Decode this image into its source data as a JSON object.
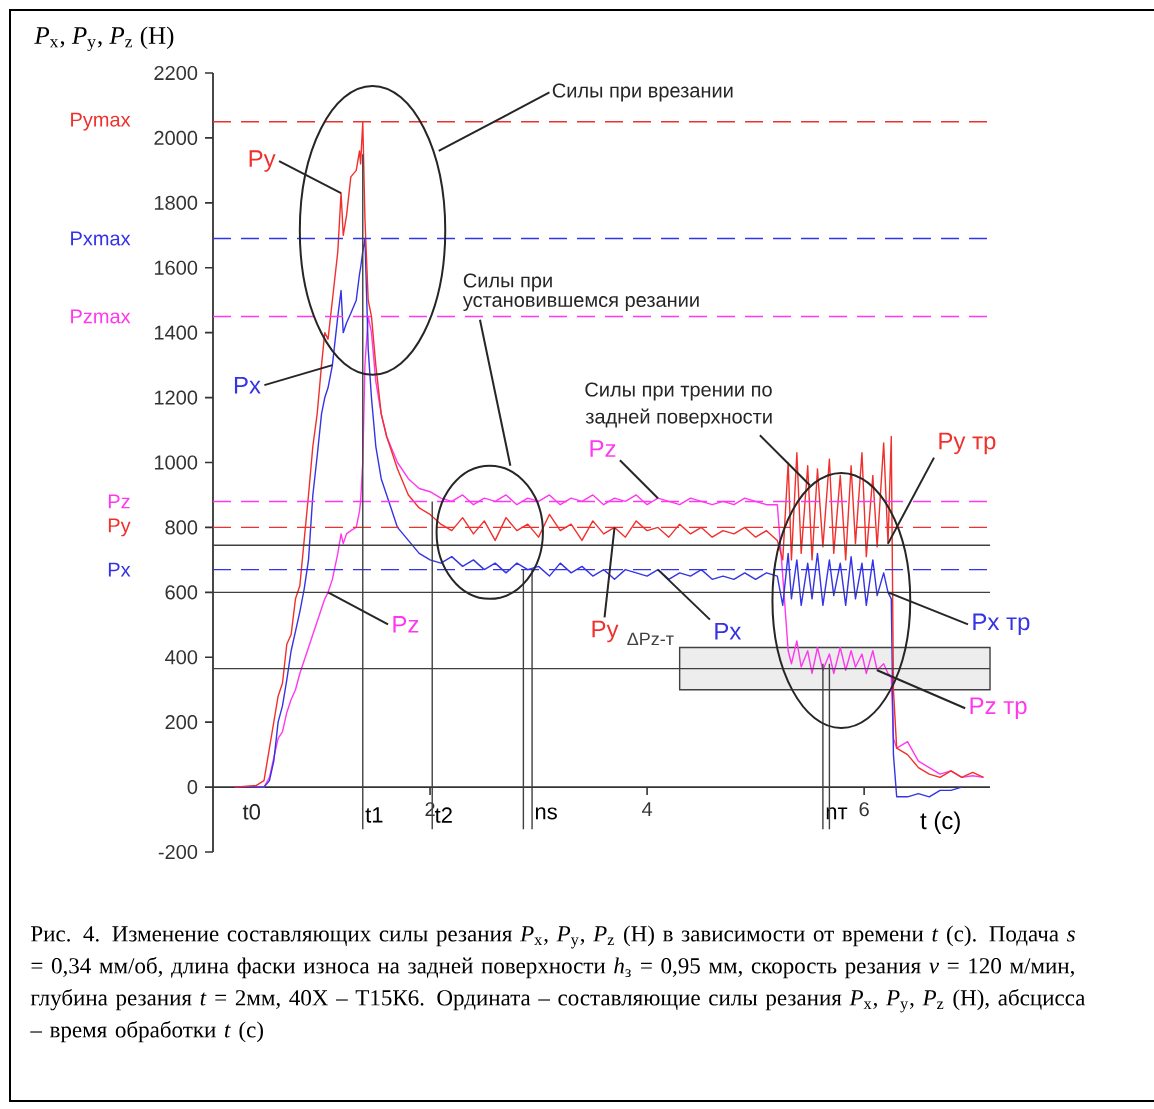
{
  "chart_data": {
    "type": "line",
    "ylabel": "*P*$_{x}$, *P*$_{y}$, *P*$_{z}$ (Н)",
    "xlabel": "t (с)",
    "xlim": [
      0,
      7.16
    ],
    "ylim": [
      -200,
      2200
    ],
    "xticks": [
      2,
      4,
      6
    ],
    "yticks": [
      -200,
      0,
      200,
      400,
      600,
      800,
      1000,
      1200,
      1400,
      1600,
      1800,
      2000,
      2200
    ],
    "line_style": "solid",
    "x": [
      0.2,
      0.4,
      0.47,
      0.52,
      0.56,
      0.6,
      0.64,
      0.68,
      0.72,
      0.76,
      0.8,
      0.84,
      0.88,
      0.92,
      0.96,
      1.0,
      1.03,
      1.06,
      1.1,
      1.15,
      1.18,
      1.2,
      1.23,
      1.27,
      1.32,
      1.35,
      1.36,
      1.38,
      1.4,
      1.43,
      1.46,
      1.5,
      1.55,
      1.6,
      1.7,
      1.8,
      1.9,
      2.0,
      2.1,
      2.2,
      2.3,
      2.4,
      2.5,
      2.6,
      2.7,
      2.8,
      2.9,
      3.0,
      3.1,
      3.2,
      3.3,
      3.4,
      3.5,
      3.6,
      3.7,
      3.8,
      3.9,
      4.0,
      4.1,
      4.2,
      4.3,
      4.4,
      4.5,
      4.6,
      4.7,
      4.8,
      4.9,
      5.0,
      5.1,
      5.2,
      5.25,
      5.3,
      5.33,
      5.38,
      5.42,
      5.48,
      5.52,
      5.57,
      5.62,
      5.68,
      5.72,
      5.78,
      5.83,
      5.88,
      5.92,
      5.98,
      6.02,
      6.08,
      6.12,
      6.18,
      6.22,
      6.25,
      6.27,
      6.3,
      6.4,
      6.5,
      6.6,
      6.7,
      6.8,
      6.9,
      7.0,
      7.1
    ],
    "series": [
      {
        "color": "#ff38f0",
        "values": [
          null,
          0,
          0,
          30,
          90,
          150,
          170,
          230,
          270,
          300,
          350,
          390,
          430,
          470,
          510,
          550,
          580,
          600,
          640,
          720,
          780,
          750,
          780,
          790,
          800,
          850,
          880,
          1000,
          1300,
          1450,
          1400,
          1250,
          1150,
          1080,
          1000,
          950,
          920,
          910,
          890,
          880,
          900,
          870,
          890,
          880,
          900,
          870,
          890,
          880,
          900,
          870,
          890,
          880,
          900,
          870,
          890,
          880,
          900,
          870,
          890,
          880,
          870,
          890,
          880,
          870,
          880,
          870,
          890,
          880,
          870,
          870,
          650,
          420,
          380,
          450,
          370,
          420,
          350,
          430,
          360,
          410,
          350,
          430,
          360,
          420,
          370,
          410,
          350,
          420,
          360,
          380,
          350,
          340,
          150,
          120,
          140,
          80,
          60,
          40,
          50,
          30,
          35,
          30
        ]
      },
      {
        "color": "#3434e6",
        "values": [
          0,
          0,
          0,
          20,
          80,
          200,
          250,
          330,
          420,
          480,
          540,
          610,
          700,
          900,
          1020,
          1150,
          1200,
          1230,
          1300,
          1450,
          1530,
          1400,
          1430,
          1460,
          1500,
          1580,
          1600,
          1650,
          1690,
          1350,
          1200,
          1050,
          950,
          900,
          800,
          760,
          720,
          700,
          690,
          710,
          680,
          700,
          670,
          690,
          660,
          690,
          670,
          680,
          650,
          690,
          660,
          680,
          650,
          670,
          640,
          670,
          660,
          650,
          670,
          640,
          660,
          650,
          670,
          640,
          650,
          640,
          660,
          640,
          660,
          650,
          560,
          720,
          580,
          700,
          560,
          690,
          580,
          720,
          560,
          700,
          590,
          690,
          560,
          710,
          580,
          690,
          560,
          700,
          590,
          660,
          600,
          580,
          100,
          -30,
          -30,
          -20,
          -30,
          -10,
          -10,
          0,
          null,
          null
        ]
      },
      {
        "color": "#f0302c",
        "values": [
          0,
          5,
          20,
          120,
          200,
          280,
          320,
          440,
          470,
          580,
          620,
          760,
          900,
          1050,
          1150,
          1300,
          1400,
          1380,
          1500,
          1650,
          1830,
          1700,
          1760,
          1880,
          1900,
          1960,
          1920,
          2050,
          1750,
          1500,
          1450,
          1300,
          1150,
          1080,
          980,
          900,
          860,
          840,
          810,
          790,
          830,
          780,
          820,
          760,
          830,
          790,
          810,
          770,
          840,
          790,
          810,
          760,
          820,
          780,
          800,
          770,
          820,
          790,
          800,
          770,
          810,
          780,
          800,
          770,
          790,
          780,
          800,
          770,
          790,
          760,
          700,
          1000,
          700,
          1030,
          720,
          990,
          700,
          980,
          740,
          1010,
          720,
          960,
          700,
          990,
          750,
          1030,
          710,
          960,
          740,
          1060,
          750,
          1080,
          300,
          120,
          100,
          60,
          40,
          30,
          50,
          30,
          45,
          30
        ]
      }
    ],
    "ref_lines": [
      {
        "axis": "y",
        "value": 2050,
        "label": "Pymax",
        "color": "#f0302c",
        "line_style": "dashed"
      },
      {
        "axis": "y",
        "value": 1690,
        "label": "Pxmax",
        "color": "#3434e6",
        "line_style": "dashed"
      },
      {
        "axis": "y",
        "value": 1450,
        "label": "Pzmax",
        "color": "#ff38f0",
        "line_style": "dashed"
      },
      {
        "axis": "y",
        "value": 880,
        "label": "Pz",
        "color": "#ff38f0",
        "line_style": "dashed"
      },
      {
        "axis": "y",
        "value": 800,
        "label": "Py",
        "color": "#f0302c",
        "line_style": "dashed"
      },
      {
        "axis": "y",
        "value": 670,
        "label": "Px",
        "color": "#3434e6",
        "line_style": "dashed"
      },
      {
        "axis": "y",
        "value": 745,
        "label": null,
        "color": "#404040",
        "line_style": "solid"
      },
      {
        "axis": "y",
        "value": 600,
        "label": null,
        "color": "#404040",
        "line_style": "solid"
      },
      {
        "axis": "y",
        "value": 365,
        "label": null,
        "color": "#404040",
        "line_style": "solid"
      },
      {
        "axis": "x",
        "value": 1.38,
        "label": "t1",
        "color": "#404040",
        "line_style": "solid"
      },
      {
        "axis": "x",
        "value": 2.02,
        "label": "t2",
        "color": "#404040",
        "line_style": "solid"
      },
      {
        "axis": "x",
        "value": 2.86,
        "label": null,
        "color": "#404040",
        "line_style": "solid"
      },
      {
        "axis": "x",
        "value": 2.94,
        "label": "ns",
        "color": "#404040",
        "line_style": "solid"
      },
      {
        "axis": "x",
        "value": 5.62,
        "label": "nт",
        "color": "#404040",
        "line_style": "solid"
      },
      {
        "axis": "x",
        "value": 5.68,
        "label": null,
        "color": "#404040",
        "line_style": "solid"
      }
    ],
    "bands": [
      {
        "axis": "y",
        "from": 300,
        "to": 430,
        "label": "ΔPz-т",
        "color": "#404040"
      }
    ],
    "annotations": [
      "Силы при врезании",
      "Силы при",
      "установившемся резании",
      "Силы при трении по",
      {
        "text": "задней поверхности",
        "x": 5.5,
        "y": 930
      },
      "t0",
      {
        "text": "Py",
        "x": 1.18,
        "y": 1830
      },
      {
        "text": "Px",
        "x": 1.1,
        "y": 1300
      },
      {
        "text": "Pz",
        "x": 1.06,
        "y": 600
      },
      {
        "text": "Pz",
        "x": 4.1,
        "y": 890
      },
      {
        "text": "Py",
        "x": 3.7,
        "y": 800
      },
      {
        "text": "Px",
        "x": 4.1,
        "y": 670
      },
      {
        "text": "Py тр",
        "x": 6.22,
        "y": 750
      },
      {
        "text": "Px тр",
        "x": 6.22,
        "y": 600
      },
      {
        "text": "Pz тр",
        "x": 6.12,
        "y": 360
      },
      "Рис. 4. Изменение составляющих силы резания *P*$_{x}$, *P*$_{y}$, *P*$_{z}$ (Н) в зависимости от времени *t* (с). Подача *s* = 0,34 мм/об, длина фаски износа на задней поверхности *h*$_{з}$ = 0,95 мм, скорость резания *v* = 120 м/мин, глубина резания *t* = 2мм, 40Х – Т15К6. Ордината – составляющие силы резания *P*$_{x}$, *P*$_{y}$, *P*$_{z}$ (Н), абсцисса – время обработки *t* (с)"
    ]
  }
}
